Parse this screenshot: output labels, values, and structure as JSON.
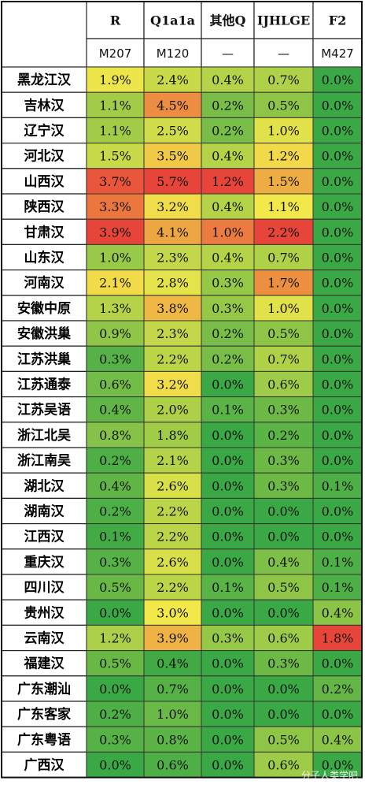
{
  "chart_data": {
    "type": "heatmap",
    "columns": [
      "R",
      "Q1a1a",
      "其他Q",
      "IJHLGE",
      "F2"
    ],
    "column_subheaders": [
      "M207",
      "M120",
      "—",
      "—",
      "M427"
    ],
    "rows": [
      "黑龙江汉",
      "吉林汉",
      "辽宁汉",
      "河北汉",
      "山西汉",
      "陕西汉",
      "甘肃汉",
      "山东汉",
      "河南汉",
      "安徽中原",
      "安徽洪巢",
      "江苏洪巢",
      "江苏通泰",
      "江苏吴语",
      "浙江北吴",
      "浙江南吴",
      "湖北汉",
      "湖南汉",
      "江西汉",
      "重庆汉",
      "四川汉",
      "贵州汉",
      "云南汉",
      "福建汉",
      "广东潮汕",
      "广东客家",
      "广东粤语",
      "广西汉"
    ],
    "values": [
      [
        "1.9%",
        "2.4%",
        "0.4%",
        "0.7%",
        "0.0%"
      ],
      [
        "1.1%",
        "4.5%",
        "0.2%",
        "0.5%",
        "0.0%"
      ],
      [
        "1.1%",
        "2.5%",
        "0.2%",
        "1.0%",
        "0.0%"
      ],
      [
        "1.5%",
        "3.5%",
        "0.4%",
        "1.2%",
        "0.0%"
      ],
      [
        "3.7%",
        "5.7%",
        "1.2%",
        "1.5%",
        "0.0%"
      ],
      [
        "3.3%",
        "3.2%",
        "0.4%",
        "1.1%",
        "0.0%"
      ],
      [
        "3.9%",
        "4.1%",
        "1.0%",
        "2.2%",
        "0.0%"
      ],
      [
        "1.0%",
        "2.3%",
        "0.4%",
        "0.7%",
        "0.0%"
      ],
      [
        "2.1%",
        "2.8%",
        "0.3%",
        "1.7%",
        "0.0%"
      ],
      [
        "1.3%",
        "3.8%",
        "0.3%",
        "1.0%",
        "0.0%"
      ],
      [
        "0.9%",
        "2.3%",
        "0.2%",
        "0.5%",
        "0.0%"
      ],
      [
        "0.3%",
        "2.2%",
        "0.2%",
        "0.7%",
        "0.0%"
      ],
      [
        "0.6%",
        "3.2%",
        "0.0%",
        "0.6%",
        "0.0%"
      ],
      [
        "0.4%",
        "2.0%",
        "0.1%",
        "0.3%",
        "0.0%"
      ],
      [
        "0.8%",
        "1.8%",
        "0.0%",
        "0.2%",
        "0.0%"
      ],
      [
        "0.2%",
        "2.1%",
        "0.0%",
        "0.3%",
        "0.0%"
      ],
      [
        "0.4%",
        "2.6%",
        "0.0%",
        "0.3%",
        "0.1%"
      ],
      [
        "0.2%",
        "2.2%",
        "0.0%",
        "0.0%",
        "0.0%"
      ],
      [
        "0.1%",
        "2.2%",
        "0.0%",
        "0.0%",
        "0.0%"
      ],
      [
        "0.3%",
        "2.6%",
        "0.0%",
        "0.4%",
        "0.1%"
      ],
      [
        "0.5%",
        "2.2%",
        "0.1%",
        "0.5%",
        "0.1%"
      ],
      [
        "0.0%",
        "3.0%",
        "0.0%",
        "0.0%",
        "0.4%"
      ],
      [
        "1.2%",
        "3.9%",
        "0.3%",
        "0.6%",
        "1.8%"
      ],
      [
        "0.5%",
        "0.4%",
        "0.0%",
        "0.3%",
        "0.0%"
      ],
      [
        "0.0%",
        "0.7%",
        "0.0%",
        "0.0%",
        "0.2%"
      ],
      [
        "0.2%",
        "1.0%",
        "0.0%",
        "0.0%",
        "0.0%"
      ],
      [
        "0.3%",
        "0.8%",
        "0.0%",
        "0.5%",
        "0.4%"
      ],
      [
        "0.0%",
        "0.6%",
        "0.0%",
        "0.6%",
        "0.0%"
      ]
    ],
    "color_scale": {
      "low": "#3aa845",
      "mid": "#f2e84a",
      "high": "#e8453a"
    },
    "watermark": "分子人类学吧"
  }
}
